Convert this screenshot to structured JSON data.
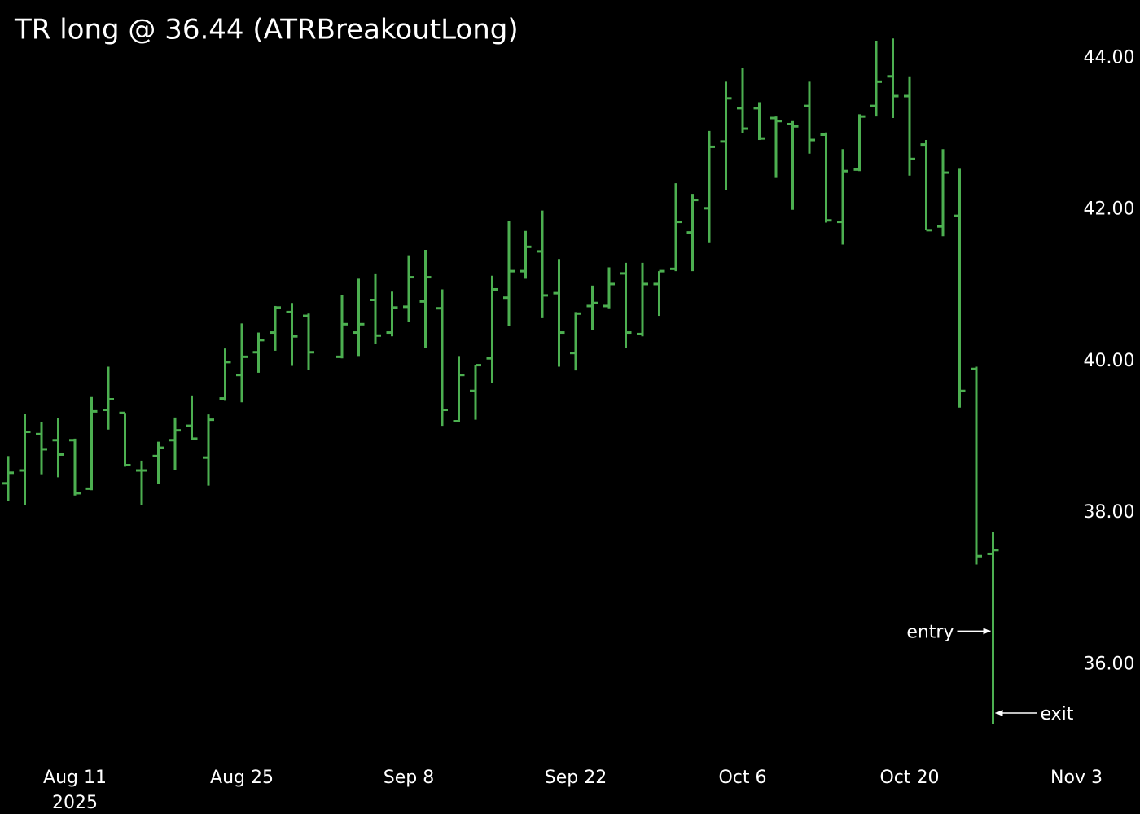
{
  "chart_data": {
    "type": "ohlc",
    "title": "TR long @ 36.44 (ATRBreakoutLong)",
    "color": "#4caf50",
    "x": [
      "2025-08-05",
      "2025-08-06",
      "2025-08-07",
      "2025-08-08",
      "2025-08-11",
      "2025-08-12",
      "2025-08-13",
      "2025-08-14",
      "2025-08-15",
      "2025-08-18",
      "2025-08-19",
      "2025-08-20",
      "2025-08-21",
      "2025-08-22",
      "2025-08-25",
      "2025-08-26",
      "2025-08-27",
      "2025-08-28",
      "2025-08-29",
      "2025-09-02",
      "2025-09-03",
      "2025-09-04",
      "2025-09-05",
      "2025-09-08",
      "2025-09-09",
      "2025-09-10",
      "2025-09-11",
      "2025-09-12",
      "2025-09-15",
      "2025-09-16",
      "2025-09-17",
      "2025-09-18",
      "2025-09-19",
      "2025-09-22",
      "2025-09-23",
      "2025-09-24",
      "2025-09-25",
      "2025-09-26",
      "2025-09-29",
      "2025-09-30",
      "2025-10-01",
      "2025-10-02",
      "2025-10-03",
      "2025-10-06",
      "2025-10-07",
      "2025-10-08",
      "2025-10-09",
      "2025-10-10",
      "2025-10-13",
      "2025-10-14",
      "2025-10-15",
      "2025-10-16",
      "2025-10-17",
      "2025-10-20",
      "2025-10-21",
      "2025-10-22",
      "2025-10-23",
      "2025-10-24",
      "2025-10-27"
    ],
    "open": [
      38.39,
      38.56,
      39.04,
      38.96,
      38.96,
      38.32,
      39.36,
      39.32,
      38.56,
      38.75,
      38.96,
      39.15,
      38.73,
      39.51,
      39.82,
      40.12,
      40.38,
      40.65,
      40.6,
      40.06,
      40.38,
      40.81,
      40.38,
      40.72,
      40.79,
      40.7,
      39.21,
      39.61,
      40.04,
      40.84,
      41.19,
      41.45,
      40.9,
      40.11,
      40.73,
      40.73,
      41.16,
      40.36,
      41.02,
      41.22,
      41.7,
      42.02,
      42.9,
      43.34,
      43.34,
      43.21,
      43.13,
      43.37,
      42.99,
      41.84,
      42.53,
      43.37,
      43.76,
      43.5,
      42.86,
      41.78,
      41.92,
      39.9,
      37.46
    ],
    "high": [
      38.75,
      39.31,
      39.2,
      39.25,
      38.98,
      39.53,
      39.93,
      39.32,
      38.69,
      38.94,
      39.26,
      39.55,
      39.3,
      40.17,
      40.5,
      40.38,
      40.73,
      40.77,
      40.63,
      40.87,
      41.09,
      41.16,
      40.92,
      41.4,
      41.47,
      40.95,
      40.07,
      39.95,
      41.13,
      41.85,
      41.72,
      41.99,
      41.35,
      40.65,
      41.0,
      41.24,
      41.3,
      41.3,
      41.19,
      42.35,
      42.21,
      43.04,
      43.69,
      43.87,
      43.42,
      43.23,
      43.17,
      43.69,
      43.02,
      42.8,
      43.26,
      44.23,
      44.26,
      43.76,
      42.92,
      42.8,
      42.54,
      39.93,
      37.75
    ],
    "low": [
      38.16,
      38.1,
      38.51,
      38.47,
      38.23,
      38.3,
      39.1,
      38.61,
      38.1,
      38.38,
      38.56,
      38.96,
      38.36,
      39.48,
      39.46,
      39.85,
      40.14,
      39.94,
      39.89,
      40.04,
      40.07,
      40.23,
      40.33,
      40.52,
      40.18,
      39.15,
      39.2,
      39.23,
      39.71,
      40.47,
      41.09,
      40.57,
      39.93,
      39.88,
      40.41,
      40.7,
      40.18,
      40.33,
      40.6,
      41.19,
      41.19,
      41.57,
      42.26,
      43.01,
      42.92,
      42.42,
      42.0,
      42.74,
      41.83,
      41.54,
      42.51,
      43.23,
      43.21,
      42.45,
      41.73,
      41.65,
      39.39,
      37.32,
      35.21
    ],
    "close": [
      38.53,
      39.07,
      38.84,
      38.77,
      38.26,
      39.34,
      39.5,
      38.63,
      38.56,
      38.86,
      39.09,
      38.98,
      39.23,
      39.99,
      40.06,
      40.28,
      40.71,
      40.33,
      40.12,
      40.49,
      40.49,
      40.34,
      40.71,
      41.11,
      41.11,
      39.36,
      39.82,
      39.95,
      40.95,
      41.19,
      41.51,
      40.87,
      40.38,
      40.63,
      40.77,
      41.02,
      40.38,
      41.02,
      41.19,
      41.84,
      42.13,
      42.83,
      43.47,
      43.07,
      42.94,
      43.17,
      43.1,
      42.92,
      41.86,
      42.51,
      43.23,
      43.69,
      43.5,
      42.67,
      41.73,
      42.49,
      39.61,
      37.43,
      37.51
    ],
    "xlim": [
      "2025-08-05",
      "2025-11-05"
    ],
    "xticks": [
      {
        "value": "2025-08-11",
        "label": "Aug 11"
      },
      {
        "value": "2025-08-25",
        "label": "Aug 25"
      },
      {
        "value": "2025-09-08",
        "label": "Sep 8"
      },
      {
        "value": "2025-09-22",
        "label": "Sep 22"
      },
      {
        "value": "2025-10-06",
        "label": "Oct 6"
      },
      {
        "value": "2025-10-20",
        "label": "Oct 20"
      },
      {
        "value": "2025-11-03",
        "label": "Nov 3"
      }
    ],
    "year_label": "2025",
    "ylim": [
      34.78,
      44.66
    ],
    "yticks": [
      {
        "value": 36,
        "label": "36.00"
      },
      {
        "value": 38,
        "label": "38.00"
      },
      {
        "value": 40,
        "label": "40.00"
      },
      {
        "value": 42,
        "label": "42.00"
      },
      {
        "value": 44,
        "label": "44.00"
      }
    ],
    "annotations": [
      {
        "label": "entry",
        "x": "2025-10-27",
        "y": 36.44
      },
      {
        "label": "exit",
        "x": "2025-10-27",
        "y": 35.36
      }
    ]
  }
}
